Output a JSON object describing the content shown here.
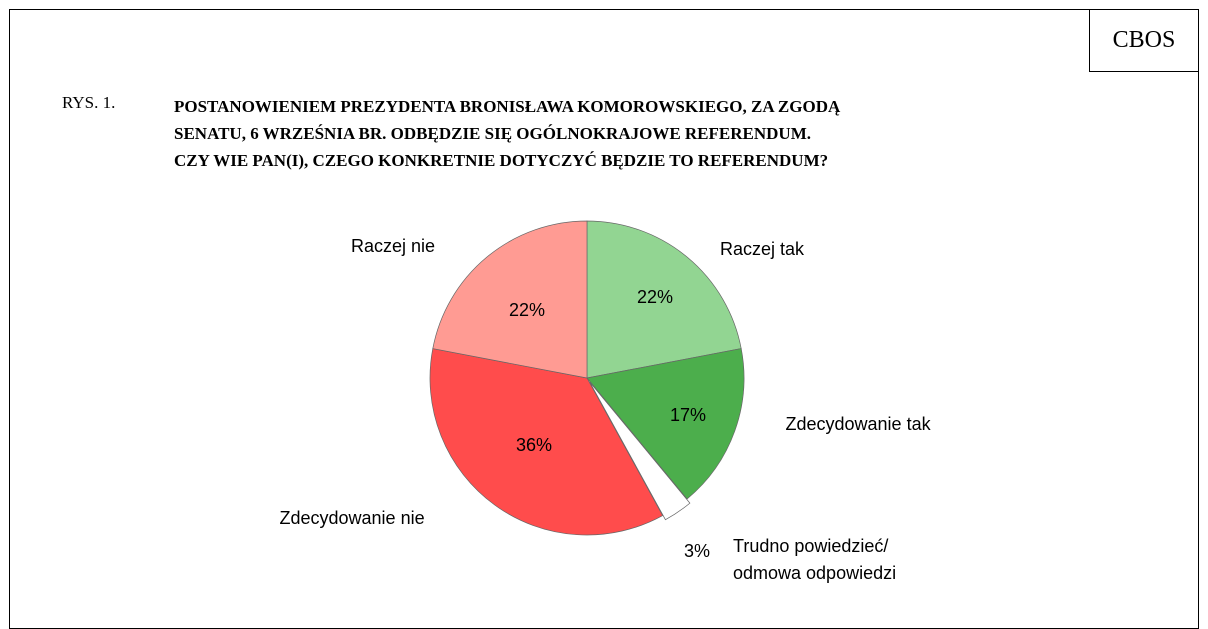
{
  "source": "CBOS",
  "figure_label": "RYS. 1.",
  "chart_data": {
    "type": "pie",
    "title": "POSTANOWIENIEM PREZYDENTA BRONISŁAWA KOMOROWSKIEGO, ZA ZGODĄ\nSENATU, 6 WRZEŚNIA BR. ODBĘDZIE SIĘ OGÓLNOKRAJOWE REFERENDUM.\nCZY WIE PAN(I), CZEGO KONKRETNIE DOTYCZYĆ BĘDZIE TO REFERENDUM?",
    "categories": [
      "Raczej tak",
      "Zdecydowanie tak",
      "Trudno powiedzieć/\nodmowa odpowiedzi",
      "Zdecydowanie nie",
      "Raczej nie"
    ],
    "values": [
      22,
      17,
      3,
      36,
      22
    ],
    "value_labels": [
      "22%",
      "17%",
      "3%",
      "36%",
      "22%"
    ],
    "colors": [
      "#92d592",
      "#4cae4c",
      "#ffffff",
      "#ff4c4c",
      "#ff9b93"
    ]
  }
}
